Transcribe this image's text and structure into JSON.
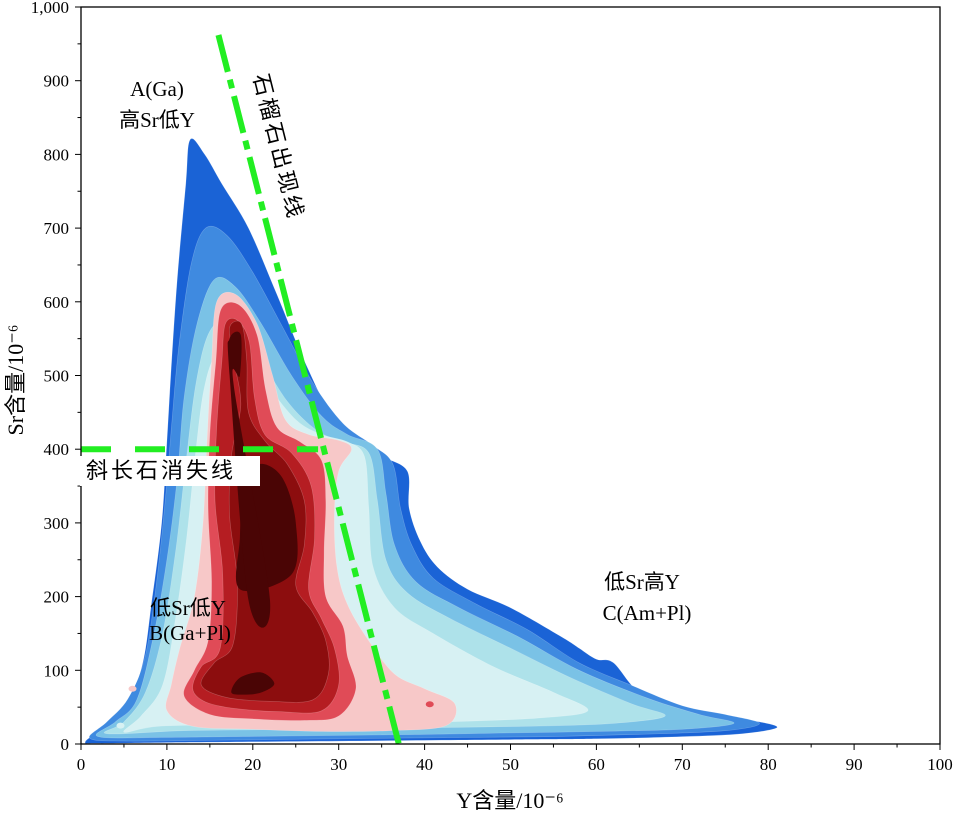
{
  "chart_data": {
    "type": "density_contour",
    "xlabel": "Y含量/10⁻⁶",
    "ylabel": "Sr含量/10⁻⁶",
    "xlim": [
      0,
      100
    ],
    "ylim": [
      0,
      1000
    ],
    "xticks": [
      "0",
      "10",
      "20",
      "30",
      "40",
      "50",
      "60",
      "70",
      "80",
      "90",
      "100"
    ],
    "yticks": [
      "0",
      "100",
      "200",
      "300",
      "400",
      "500",
      "600",
      "700",
      "800",
      "900",
      "1,000"
    ],
    "xtick_values": [
      0,
      10,
      20,
      30,
      40,
      50,
      60,
      70,
      80,
      90,
      100
    ],
    "ytick_values": [
      0,
      100,
      200,
      300,
      400,
      500,
      600,
      700,
      800,
      900,
      1000
    ],
    "density_colors": [
      "#1a63d6",
      "#3f8ae0",
      "#7ac2e6",
      "#aee2ea",
      "#d7f1f3",
      "#f7c8c8",
      "#e04b57",
      "#b51d22",
      "#8c0d0e",
      "#4a0505"
    ],
    "contours": [
      {
        "level": 1,
        "color": "#1a63d6",
        "points": [
          [
            0.5,
            3
          ],
          [
            2.5,
            22
          ],
          [
            5.5,
            58
          ],
          [
            7.2,
            110
          ],
          [
            8.2,
            190
          ],
          [
            9.4,
            300
          ],
          [
            10,
            410
          ],
          [
            10.5,
            510
          ],
          [
            11.2,
            630
          ],
          [
            12.2,
            760
          ],
          [
            12.7,
            820
          ],
          [
            14.4,
            800
          ],
          [
            16.4,
            760
          ],
          [
            19.5,
            700
          ],
          [
            22.8,
            610
          ],
          [
            26,
            520
          ],
          [
            29.5,
            440
          ],
          [
            33,
            410
          ],
          [
            35.2,
            390
          ],
          [
            38,
            370
          ],
          [
            38.2,
            320
          ],
          [
            39.5,
            275
          ],
          [
            41.5,
            240
          ],
          [
            45,
            210
          ],
          [
            50,
            185
          ],
          [
            56,
            145
          ],
          [
            58,
            130
          ],
          [
            60,
            115
          ],
          [
            62,
            110
          ],
          [
            65,
            70
          ],
          [
            70,
            42
          ],
          [
            75,
            35
          ],
          [
            79,
            30
          ],
          [
            81,
            22
          ],
          [
            77,
            14
          ],
          [
            70,
            10
          ],
          [
            60,
            7
          ],
          [
            50,
            6
          ],
          [
            30,
            4
          ],
          [
            10,
            2
          ],
          [
            2,
            1
          ]
        ]
      },
      {
        "level": 2,
        "color": "#3f8ae0",
        "points": [
          [
            1,
            8
          ],
          [
            3,
            30
          ],
          [
            5.5,
            62
          ],
          [
            7.5,
            120
          ],
          [
            8.8,
            220
          ],
          [
            9.8,
            330
          ],
          [
            10.6,
            440
          ],
          [
            11.4,
            540
          ],
          [
            12.8,
            650
          ],
          [
            14.5,
            700
          ],
          [
            17,
            690
          ],
          [
            20,
            640
          ],
          [
            23.5,
            565
          ],
          [
            27,
            490
          ],
          [
            30.5,
            435
          ],
          [
            34,
            405
          ],
          [
            36.3,
            380
          ],
          [
            37.2,
            320
          ],
          [
            38.5,
            270
          ],
          [
            41,
            225
          ],
          [
            46,
            190
          ],
          [
            52,
            155
          ],
          [
            58,
            110
          ],
          [
            64,
            80
          ],
          [
            70,
            52
          ],
          [
            75,
            40
          ],
          [
            79,
            28
          ],
          [
            75,
            18
          ],
          [
            65,
            13
          ],
          [
            55,
            10
          ],
          [
            45,
            9
          ],
          [
            30,
            7
          ],
          [
            15,
            5
          ],
          [
            5,
            4
          ]
        ]
      },
      {
        "level": 3,
        "color": "#7ac2e6",
        "points": [
          [
            2,
            10
          ],
          [
            4,
            30
          ],
          [
            6.5,
            60
          ],
          [
            8.5,
            150
          ],
          [
            10,
            250
          ],
          [
            11.2,
            360
          ],
          [
            12,
            470
          ],
          [
            13.5,
            570
          ],
          [
            15.5,
            630
          ],
          [
            18,
            620
          ],
          [
            21,
            570
          ],
          [
            24.5,
            500
          ],
          [
            28,
            445
          ],
          [
            31,
            420
          ],
          [
            34.5,
            400
          ],
          [
            35.5,
            340
          ],
          [
            36.5,
            270
          ],
          [
            39,
            220
          ],
          [
            44,
            185
          ],
          [
            51,
            145
          ],
          [
            58,
            100
          ],
          [
            66,
            62
          ],
          [
            72,
            40
          ],
          [
            76,
            28
          ],
          [
            70,
            20
          ],
          [
            60,
            17
          ],
          [
            50,
            15
          ],
          [
            40,
            13
          ],
          [
            25,
            11
          ],
          [
            10,
            9
          ]
        ]
      },
      {
        "level": 4,
        "color": "#aee2ea",
        "points": [
          [
            3,
            14
          ],
          [
            5,
            30
          ],
          [
            7.5,
            70
          ],
          [
            9.5,
            150
          ],
          [
            11,
            260
          ],
          [
            12.2,
            380
          ],
          [
            13.4,
            490
          ],
          [
            15,
            560
          ],
          [
            17.5,
            575
          ],
          [
            20.5,
            530
          ],
          [
            24,
            465
          ],
          [
            27.5,
            425
          ],
          [
            30.5,
            410
          ],
          [
            33.5,
            395
          ],
          [
            34.5,
            330
          ],
          [
            35.5,
            250
          ],
          [
            38,
            205
          ],
          [
            43,
            170
          ],
          [
            50,
            130
          ],
          [
            57,
            90
          ],
          [
            64,
            55
          ],
          [
            68,
            38
          ],
          [
            62,
            28
          ],
          [
            52,
            24
          ],
          [
            40,
            22
          ],
          [
            25,
            20
          ],
          [
            12,
            18
          ]
        ]
      },
      {
        "level": 5,
        "color": "#d7f1f3",
        "points": [
          [
            5,
            16
          ],
          [
            7,
            38
          ],
          [
            9.5,
            80
          ],
          [
            11,
            170
          ],
          [
            12.3,
            280
          ],
          [
            13.3,
            390
          ],
          [
            14.3,
            480
          ],
          [
            15.8,
            530
          ],
          [
            18.5,
            540
          ],
          [
            21.5,
            490
          ],
          [
            25,
            440
          ],
          [
            28,
            420
          ],
          [
            31,
            410
          ],
          [
            33,
            390
          ],
          [
            33.5,
            320
          ],
          [
            34,
            240
          ],
          [
            36.5,
            185
          ],
          [
            41,
            150
          ],
          [
            48,
            105
          ],
          [
            55,
            70
          ],
          [
            59,
            45
          ],
          [
            53,
            35
          ],
          [
            42,
            30
          ],
          [
            30,
            28
          ],
          [
            18,
            26
          ],
          [
            9,
            24
          ]
        ]
      },
      {
        "level": 6,
        "color": "#f7c8c8",
        "points": [
          [
            10,
            45
          ],
          [
            10.5,
            80
          ],
          [
            11.5,
            130
          ],
          [
            13.2,
            200
          ],
          [
            14.2,
            300
          ],
          [
            14.7,
            420
          ],
          [
            15.2,
            520
          ],
          [
            15.8,
            600
          ],
          [
            18,
            610
          ],
          [
            20.5,
            570
          ],
          [
            22.3,
            500
          ],
          [
            23.8,
            440
          ],
          [
            26.5,
            420
          ],
          [
            30,
            412
          ],
          [
            31.5,
            400
          ],
          [
            30,
            370
          ],
          [
            29.5,
            310
          ],
          [
            29.8,
            240
          ],
          [
            31,
            190
          ],
          [
            33.5,
            140
          ],
          [
            36.5,
            95
          ],
          [
            40,
            75
          ],
          [
            43.5,
            55
          ],
          [
            42.5,
            25
          ],
          [
            36,
            18
          ],
          [
            28,
            17
          ],
          [
            20,
            20
          ],
          [
            13,
            24
          ]
        ]
      },
      {
        "level": 7,
        "color": "#e04b57",
        "points": [
          [
            12,
            65
          ],
          [
            13.2,
            100
          ],
          [
            14.8,
            140
          ],
          [
            15.2,
            220
          ],
          [
            14.8,
            320
          ],
          [
            15,
            420
          ],
          [
            15.7,
            520
          ],
          [
            16.3,
            590
          ],
          [
            18.5,
            595
          ],
          [
            20.5,
            555
          ],
          [
            21.5,
            480
          ],
          [
            22.8,
            430
          ],
          [
            25.5,
            410
          ],
          [
            28,
            385
          ],
          [
            28.5,
            330
          ],
          [
            28.3,
            260
          ],
          [
            28.5,
            200
          ],
          [
            30.5,
            160
          ],
          [
            31,
            120
          ],
          [
            32,
            75
          ],
          [
            30,
            38
          ],
          [
            26,
            32
          ],
          [
            20,
            34
          ],
          [
            15,
            40
          ]
        ]
      },
      {
        "level": 8,
        "color": "#b51d22",
        "points": [
          [
            13,
            75
          ],
          [
            14,
            105
          ],
          [
            16.2,
            130
          ],
          [
            16.5,
            230
          ],
          [
            15.6,
            330
          ],
          [
            15.8,
            430
          ],
          [
            16.4,
            520
          ],
          [
            16.8,
            570
          ],
          [
            18.2,
            575
          ],
          [
            19.6,
            545
          ],
          [
            20.2,
            470
          ],
          [
            21.4,
            420
          ],
          [
            24.5,
            395
          ],
          [
            26.8,
            350
          ],
          [
            27.2,
            280
          ],
          [
            26.5,
            210
          ],
          [
            28,
            170
          ],
          [
            29.5,
            130
          ],
          [
            30,
            80
          ],
          [
            28,
            45
          ],
          [
            23,
            44
          ],
          [
            18,
            48
          ],
          [
            14.5,
            57
          ]
        ]
      },
      {
        "level": 9,
        "color": "#8c0d0e",
        "points": [
          [
            14,
            80
          ],
          [
            15.5,
            110
          ],
          [
            17.7,
            135
          ],
          [
            18.2,
            220
          ],
          [
            17.3,
            310
          ],
          [
            17.5,
            390
          ],
          [
            18.6,
            460
          ],
          [
            17.8,
            520
          ],
          [
            17.3,
            565
          ],
          [
            18.7,
            570
          ],
          [
            19.3,
            520
          ],
          [
            19.5,
            450
          ],
          [
            21.5,
            410
          ],
          [
            24,
            380
          ],
          [
            26,
            330
          ],
          [
            26,
            270
          ],
          [
            25,
            215
          ],
          [
            27,
            178
          ],
          [
            28.5,
            140
          ],
          [
            28.8,
            95
          ],
          [
            27,
            60
          ],
          [
            22,
            58
          ],
          [
            17,
            63
          ]
        ]
      },
      {
        "level": 10,
        "color": "#4a0505",
        "points": [
          [
            17.5,
            70
          ],
          [
            18.5,
            90
          ],
          [
            21,
            97
          ],
          [
            22.5,
            82
          ],
          [
            21,
            70
          ],
          [
            19,
            67
          ],
          [
            18.5,
            210
          ],
          [
            18.5,
            280
          ],
          [
            19,
            360
          ],
          [
            21,
            380
          ],
          [
            23.5,
            360
          ],
          [
            25,
            300
          ],
          [
            24.5,
            230
          ],
          [
            22,
            195
          ],
          [
            19.5,
            195
          ],
          [
            17.3,
            500
          ],
          [
            17.3,
            550
          ],
          [
            18.6,
            555
          ],
          [
            18.5,
            500
          ],
          [
            17.8,
            485
          ]
        ]
      }
    ],
    "extra_spots": [
      {
        "x": 40.6,
        "y": 54,
        "color": "#e04b57"
      },
      {
        "x": 6,
        "y": 75,
        "color": "#f7c8c8"
      },
      {
        "x": 4.6,
        "y": 25,
        "color": "#d7f1f3"
      }
    ],
    "lines": [
      {
        "name": "garnet_line",
        "style": "dashdot",
        "color": "#22ee22",
        "points": [
          [
            16,
            962
          ],
          [
            37,
            0
          ]
        ]
      },
      {
        "name": "plagioclase_line",
        "style": "dashed",
        "color": "#22ee22",
        "points": [
          [
            0,
            400
          ],
          [
            27.6,
            400
          ]
        ]
      }
    ],
    "annotations": {
      "garnet_line_label": "石榴石出现线",
      "plagioclase_line_label": "斜长石消失线",
      "region_A_line1": "A(Ga)",
      "region_A_line2": "高Sr低Y",
      "region_B_line1": "低Sr低Y",
      "region_B_line2": "B(Ga+Pl)",
      "region_C_line1": "低Sr高Y",
      "region_C_line2": "C(Am+Pl)"
    }
  }
}
